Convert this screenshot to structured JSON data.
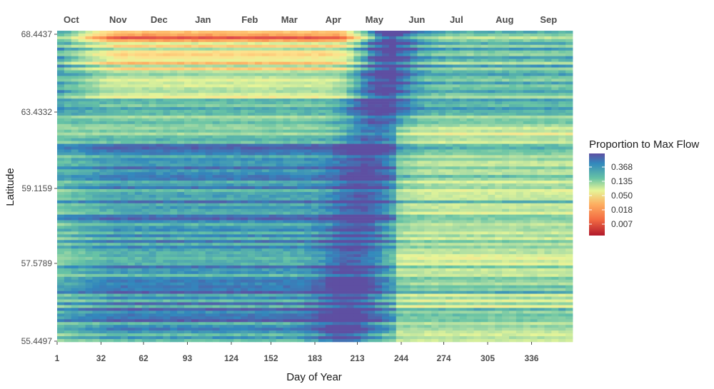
{
  "chart_data": {
    "type": "heatmap",
    "title": "",
    "xlabel": "Day of Year",
    "ylabel": "Latitude",
    "x_ticks": [
      1,
      32,
      62,
      93,
      124,
      152,
      183,
      213,
      244,
      274,
      305,
      336
    ],
    "xlim": [
      1,
      365
    ],
    "months": [
      {
        "label": "Oct",
        "day": 11
      },
      {
        "label": "Nov",
        "day": 44
      },
      {
        "label": "Dec",
        "day": 73
      },
      {
        "label": "Jan",
        "day": 104
      },
      {
        "label": "Feb",
        "day": 137
      },
      {
        "label": "Mar",
        "day": 165
      },
      {
        "label": "Apr",
        "day": 196
      },
      {
        "label": "May",
        "day": 225
      },
      {
        "label": "Jun",
        "day": 255
      },
      {
        "label": "Jul",
        "day": 283
      },
      {
        "label": "Aug",
        "day": 317
      },
      {
        "label": "Sep",
        "day": 348
      }
    ],
    "y_ticks": [
      "68.4437",
      "63.4332",
      "59.1159",
      "57.5789",
      "55.4497"
    ],
    "grid": false,
    "legend": {
      "title": "Proportion to Max Flow",
      "placement": "right",
      "labels": [
        "0.368",
        "0.135",
        "0.050",
        "0.018",
        "0.007"
      ],
      "colors": [
        "#5e4fa2",
        "#3288bd",
        "#66c2a5",
        "#abdda4",
        "#e6f598",
        "#fee08b",
        "#fdae61",
        "#f46d43",
        "#d53e4f",
        "#9e0142"
      ]
    }
  }
}
